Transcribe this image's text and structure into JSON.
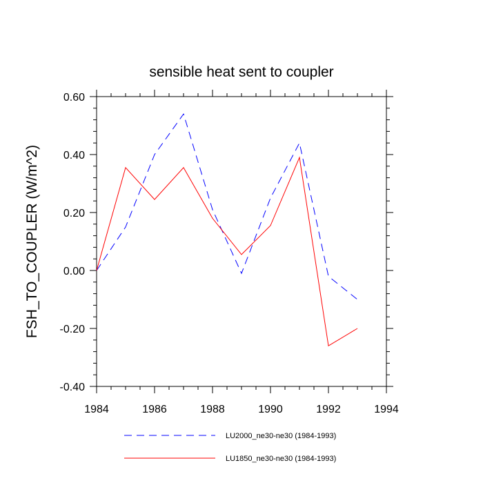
{
  "chart_data": {
    "type": "line",
    "title": "sensible heat sent to coupler",
    "xlabel": "",
    "ylabel": "FSH_TO_COUPLER  (W/m^2)",
    "xlim": [
      1984,
      1994
    ],
    "ylim": [
      -0.4,
      0.6
    ],
    "x_ticks": [
      1984,
      1986,
      1988,
      1990,
      1992,
      1994
    ],
    "x_tick_labels": [
      "1984",
      "1986",
      "1988",
      "1990",
      "1992",
      "1994"
    ],
    "y_ticks": [
      -0.4,
      -0.2,
      0.0,
      0.2,
      0.4,
      0.6
    ],
    "y_tick_labels": [
      "-0.40",
      "-0.20",
      "0.00",
      "0.20",
      "0.40",
      "0.60"
    ],
    "grid": false,
    "legend_position": "bottom",
    "series": [
      {
        "name": "LU2000_ne30-ne30 (1984-1993)",
        "color": "#0000ff",
        "style": "dashed",
        "x": [
          1984,
          1985,
          1986,
          1987,
          1988,
          1989,
          1990,
          1991,
          1992,
          1993
        ],
        "values": [
          0.0,
          0.15,
          0.4,
          0.54,
          0.21,
          -0.01,
          0.25,
          0.44,
          -0.02,
          -0.1
        ]
      },
      {
        "name": "LU1850_ne30-ne30 (1984-1993)",
        "color": "#ff0000",
        "style": "solid",
        "x": [
          1984,
          1985,
          1986,
          1987,
          1988,
          1989,
          1990,
          1991,
          1992,
          1993
        ],
        "values": [
          0.0,
          0.355,
          0.245,
          0.355,
          0.18,
          0.055,
          0.155,
          0.39,
          -0.26,
          -0.2
        ]
      }
    ]
  }
}
